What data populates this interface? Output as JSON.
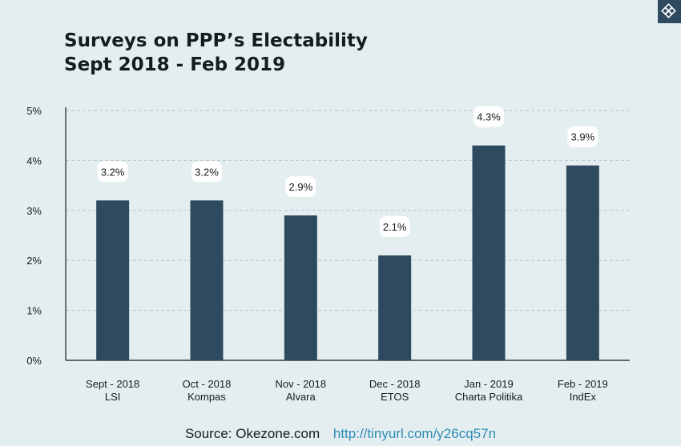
{
  "title_line1": "Surveys on PPP’s Electability",
  "title_line2": "Sept 2018 - Feb 2019",
  "source": {
    "label": "Source: Okezone.com",
    "url": "http://tinyurl.com/y26cq57n"
  },
  "logo_icon": "diamond-logo-icon",
  "colors": {
    "bar": "#2d4a5f",
    "background": "#e4eef0",
    "link": "#2f8bb3"
  },
  "chart_data": {
    "type": "bar",
    "title": "Surveys on PPP’s Electability Sept 2018 - Feb 2019",
    "categories": [
      [
        "Sept - 2018",
        "LSI"
      ],
      [
        "Oct - 2018",
        "Kompas"
      ],
      [
        "Nov - 2018",
        "Alvara"
      ],
      [
        "Dec - 2018",
        "ETOS"
      ],
      [
        "Jan - 2019",
        "Charta Politika"
      ],
      [
        "Feb - 2019",
        "IndEx"
      ]
    ],
    "values": [
      3.2,
      3.2,
      2.9,
      2.1,
      4.3,
      3.9
    ],
    "data_labels": [
      "3.2%",
      "3.2%",
      "2.9%",
      "2.1%",
      "4.3%",
      "3.9%"
    ],
    "ylim": [
      0,
      5
    ],
    "yticks": [
      "0%",
      "1%",
      "2%",
      "3%",
      "4%",
      "5%"
    ],
    "grid": true,
    "xlabel": "",
    "ylabel": ""
  }
}
